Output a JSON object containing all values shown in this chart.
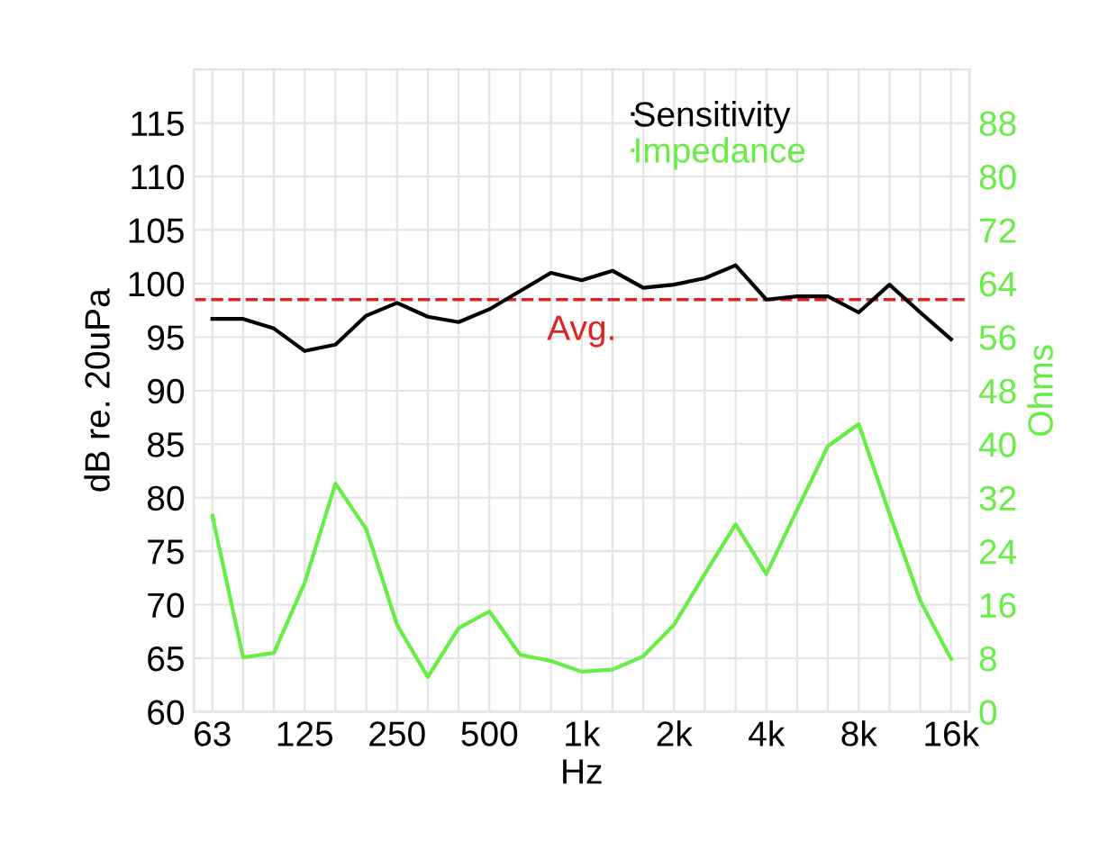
{
  "chart_data": {
    "type": "line",
    "xlabel": "Hz",
    "ylabel": "dB re. 20uPa",
    "y2label": "Ohms",
    "categories": [
      "63",
      null,
      null,
      "125",
      null,
      null,
      "250",
      null,
      null,
      "500",
      null,
      null,
      "1k",
      null,
      null,
      "2k",
      null,
      null,
      "4k",
      null,
      null,
      "8k",
      null,
      null,
      "16k"
    ],
    "series": [
      {
        "name": "Sensitivity",
        "color": "#000000",
        "values": [
          96.7,
          96.7,
          95.8,
          93.7,
          94.3,
          97.0,
          98.2,
          96.9,
          96.4,
          97.6,
          99.3,
          101.0,
          100.3,
          101.2,
          99.6,
          99.9,
          100.5,
          101.7,
          98.5,
          98.8,
          98.8,
          97.3,
          99.9,
          97.3,
          94.8
        ]
      },
      {
        "name": "Impedance",
        "color": "#66ee44",
        "axis": "y2",
        "values": [
          29.3,
          8.1,
          8.8,
          19.3,
          34.1,
          27.3,
          13.0,
          5.2,
          12.5,
          15.0,
          8.5,
          7.6,
          6.0,
          6.3,
          8.3,
          13.0,
          20.6,
          28.0,
          20.6,
          30.2,
          39.7,
          43.0,
          29.6,
          16.6,
          7.9
        ]
      }
    ],
    "ylim": [
      60,
      120
    ],
    "yticks": [
      60,
      65,
      70,
      75,
      80,
      85,
      90,
      95,
      100,
      105,
      110,
      115
    ],
    "y2lim": [
      0,
      96
    ],
    "y2ticks": [
      0,
      8,
      16,
      24,
      32,
      40,
      48,
      56,
      64,
      72,
      80,
      88
    ],
    "ref_lines": [
      {
        "axis": "y",
        "value": 98.5,
        "label": "Avg.",
        "color": "#dd2222",
        "line_style": "dashed"
      }
    ],
    "grid": true,
    "legend": "top right",
    "marker": "none",
    "line_style": "solid"
  }
}
